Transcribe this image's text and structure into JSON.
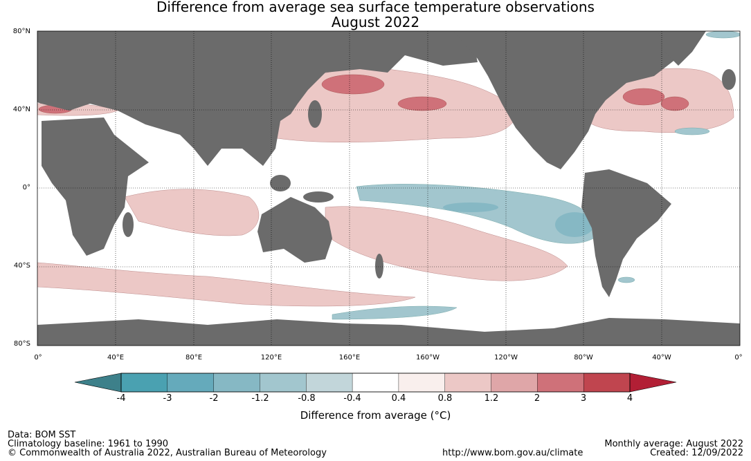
{
  "header": {
    "title": "Difference from average sea surface temperature observations",
    "subtitle": "August 2022"
  },
  "map": {
    "latitude_labels": [
      "80°N",
      "40°N",
      "0°",
      "40°S",
      "80°S"
    ],
    "longitude_labels": [
      "0°",
      "40°E",
      "80°E",
      "120°E",
      "160°E",
      "160°W",
      "120°W",
      "80°W",
      "40°W",
      "0°"
    ],
    "colors": {
      "land": "#6b6b6b",
      "ocean_neutral": "#ffffff"
    }
  },
  "colorbar": {
    "title": "Difference from average (°C)",
    "tick_labels": [
      "-4",
      "-3",
      "-2",
      "-1.2",
      "-0.8",
      "-0.4",
      "0.4",
      "0.8",
      "1.2",
      "2",
      "3",
      "4"
    ],
    "segment_colors": [
      "#4aa1b1",
      "#65aabb",
      "#86b8c4",
      "#a2c6ce",
      "#c2d6da",
      "#ffffff",
      "#f9efed",
      "#ecc8c6",
      "#dfa6a8",
      "#cf7179",
      "#c0454f"
    ],
    "extend_low_color": "#3d808a",
    "extend_high_color": "#b21f35"
  },
  "footer": {
    "data_source": "Data: BOM SST",
    "baseline": "Climatology baseline: 1961 to 1990",
    "copyright": "© Commonwealth of Australia 2022, Australian Bureau of Meteorology",
    "url": "http://www.bom.gov.au/climate",
    "period": "Monthly average: August 2022",
    "created": "Created: 12/09/2022"
  }
}
